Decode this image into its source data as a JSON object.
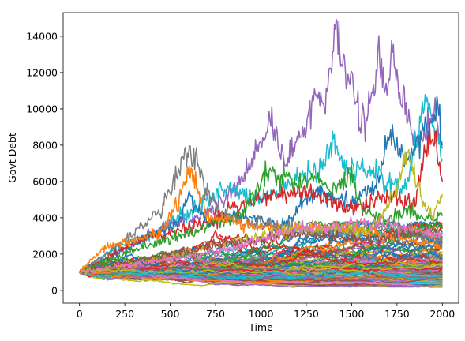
{
  "chart_data": {
    "type": "line",
    "title": "",
    "xlabel": "Time",
    "ylabel": "Govt Debt",
    "xlim": [
      -90,
      2090
    ],
    "ylim": [
      -700,
      15300
    ],
    "xticks": [
      0,
      250,
      500,
      750,
      1000,
      1250,
      1500,
      1750,
      2000
    ],
    "yticks": [
      0,
      2000,
      4000,
      6000,
      8000,
      10000,
      12000,
      14000
    ],
    "grid": false,
    "legend": "none",
    "palette": [
      "#1f77b4",
      "#ff7f0e",
      "#2ca02c",
      "#d62728",
      "#9467bd",
      "#8c564b",
      "#e377c2",
      "#7f7f7f",
      "#bcbd22",
      "#17becf"
    ],
    "n_steps": 2000,
    "initial_value": 1000,
    "num_background_paths": 140,
    "series": [
      {
        "color": "#9467bd",
        "x": [
          0,
          100,
          200,
          300,
          400,
          500,
          600,
          700,
          800,
          900,
          1000,
          1050,
          1100,
          1150,
          1200,
          1250,
          1300,
          1350,
          1400,
          1420,
          1450,
          1500,
          1550,
          1600,
          1650,
          1700,
          1720,
          1750,
          1800,
          1850,
          1900,
          1950,
          2000
        ],
        "y": [
          1000,
          1500,
          2000,
          2600,
          3200,
          3600,
          3900,
          4200,
          5000,
          6200,
          8000,
          9500,
          7500,
          7000,
          8500,
          9200,
          11000,
          10000,
          13000,
          14500,
          12000,
          11500,
          9000,
          10500,
          12500,
          11000,
          13300,
          11500,
          9500,
          8000,
          8500,
          10000,
          7800
        ]
      },
      {
        "color": "#17becf",
        "x": [
          0,
          200,
          400,
          600,
          800,
          1000,
          1200,
          1350,
          1400,
          1450,
          1600,
          1800,
          1900,
          1950,
          2000
        ],
        "y": [
          1000,
          2400,
          3000,
          4300,
          5600,
          5000,
          6200,
          6800,
          8300,
          6800,
          6500,
          5500,
          10500,
          9000,
          7200
        ]
      },
      {
        "color": "#1f77b4",
        "x": [
          0,
          300,
          550,
          600,
          700,
          900,
          1100,
          1300,
          1500,
          1650,
          1700,
          1800,
          1900,
          1980,
          2000
        ],
        "y": [
          1000,
          2500,
          3800,
          5200,
          3800,
          4200,
          3400,
          5400,
          4800,
          6000,
          8800,
          7200,
          8800,
          10000,
          8000
        ]
      },
      {
        "color": "#d62728",
        "x": [
          0,
          300,
          600,
          900,
          1200,
          1500,
          1700,
          1850,
          1900,
          1950,
          2000
        ],
        "y": [
          1000,
          2600,
          3400,
          4700,
          5600,
          4500,
          5200,
          4800,
          7500,
          8500,
          6000
        ]
      },
      {
        "color": "#2ca02c",
        "x": [
          0,
          300,
          600,
          900,
          1000,
          1050,
          1200,
          1300,
          1400,
          1500,
          1550,
          1700,
          1800,
          1900,
          2000
        ],
        "y": [
          1000,
          2200,
          3200,
          4200,
          6000,
          6600,
          5800,
          6400,
          5500,
          6500,
          4500,
          3800,
          4600,
          3900,
          4100
        ]
      },
      {
        "color": "#7f7f7f",
        "x": [
          0,
          150,
          300,
          450,
          550,
          600,
          650,
          700,
          800,
          900,
          1100,
          1300,
          1500,
          1700,
          1900,
          2000
        ],
        "y": [
          1000,
          2000,
          3100,
          4500,
          6500,
          7600,
          7300,
          5500,
          4200,
          3800,
          3500,
          3200,
          3300,
          3600,
          3000,
          2700
        ]
      },
      {
        "color": "#ff7f0e",
        "x": [
          0,
          100,
          150,
          300,
          450,
          550,
          600,
          650,
          700,
          900,
          1100,
          1300,
          1500,
          1700,
          1900,
          2000
        ],
        "y": [
          1000,
          2000,
          2400,
          2700,
          3200,
          5000,
          6700,
          5600,
          4200,
          3600,
          3300,
          3500,
          3300,
          3000,
          2600,
          2500
        ]
      },
      {
        "color": "#bcbd22",
        "x": [
          0,
          400,
          800,
          1200,
          1600,
          1750,
          1800,
          1850,
          1900,
          1950,
          2000
        ],
        "y": [
          1000,
          1700,
          2600,
          3400,
          3300,
          5500,
          7600,
          6500,
          4500,
          4300,
          5300
        ]
      },
      {
        "color": "#8c564b",
        "x": [
          0,
          400,
          800,
          1200,
          1600,
          2000
        ],
        "y": [
          1000,
          1800,
          2600,
          3100,
          2800,
          3400
        ]
      },
      {
        "color": "#e377c2",
        "x": [
          0,
          400,
          800,
          1200,
          1600,
          2000
        ],
        "y": [
          1000,
          1600,
          2200,
          3400,
          3700,
          3100
        ]
      }
    ]
  }
}
